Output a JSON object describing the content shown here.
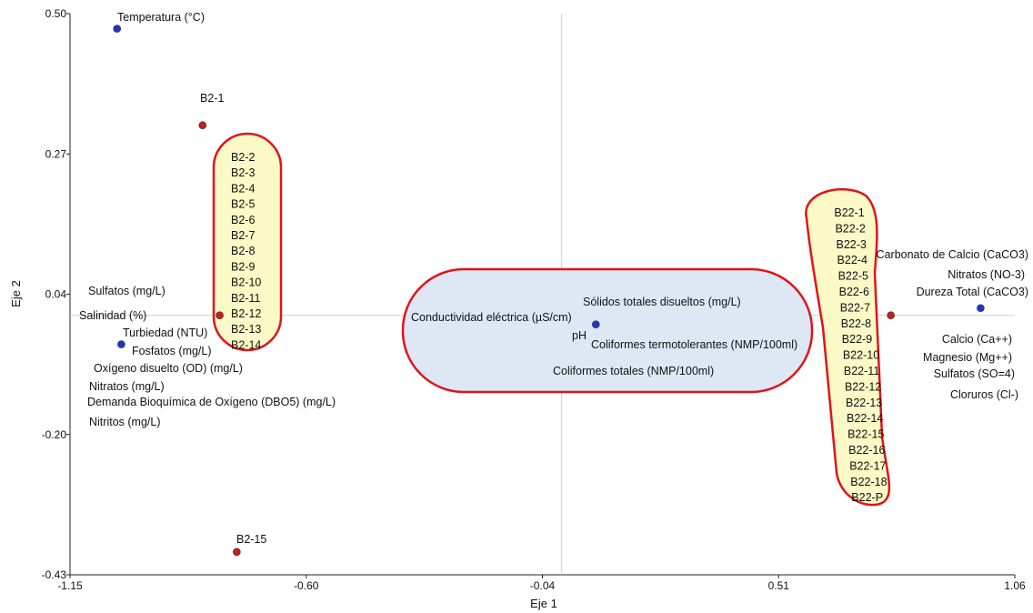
{
  "chart_data": {
    "type": "scatter",
    "xlabel": "Eje 1",
    "ylabel": "Eje 2",
    "xlim": [
      -1.15,
      1.06
    ],
    "ylim": [
      -0.43,
      0.5
    ],
    "xticks": [
      "-1.15",
      "-0.60",
      "-0.04",
      "0.51",
      "1.06"
    ],
    "yticks": [
      "0.50",
      "0.27",
      "0.04",
      "-0.20",
      "-0.43"
    ],
    "reference_lines": {
      "x": 0.0,
      "y": 0.0
    },
    "grid": false,
    "points": [
      {
        "label": "Temperatura (°C)",
        "x": -1.04,
        "y": 0.475,
        "color": "#1f35c9"
      },
      {
        "label": "B2-1",
        "x": -0.84,
        "y": 0.315,
        "color": "#c81e1e"
      },
      {
        "label": "",
        "x": -0.8,
        "y": 0.0,
        "color": "#c81e1e"
      },
      {
        "label": "",
        "x": -1.03,
        "y": -0.048,
        "color": "#1f35c9"
      },
      {
        "label": "B2-15",
        "x": -0.76,
        "y": -0.392,
        "color": "#c81e1e"
      },
      {
        "label": "",
        "x": 0.08,
        "y": -0.015,
        "color": "#1f35c9"
      },
      {
        "label": "",
        "x": 0.77,
        "y": 0.0,
        "color": "#c81e1e"
      },
      {
        "label": "",
        "x": 0.98,
        "y": 0.012,
        "color": "#1f35c9"
      }
    ],
    "variable_labels": [
      "Sulfatos (mg/L)",
      "Salinidad (%)",
      "Turbiedad (NTU)",
      "Fosfatos (mg/L)",
      "Oxígeno disuelto (OD) (mg/L)",
      "Nitratos (mg/L)",
      "Demanda Bioquímica de Oxígeno (DBO5) (mg/L)",
      "Nitritos (mg/L)",
      "Conductividad eléctrica (µS/cm)",
      "Sólidos totales disueltos (mg/L)",
      "pH",
      "Coliformes termotolerantes (NMP/100ml)",
      "Coliformes totales (NMP/100ml)",
      "Carbonato de Calcio (CaCO3)",
      "Nitratos (NO-3)",
      "Dureza Total (CaCO3)",
      "Calcio (Ca++)",
      "Magnesio (Mg++)",
      "Sulfatos (SO=4)",
      "Cloruros (Cl-)"
    ],
    "group_b2": [
      "B2-2",
      "B2-3",
      "B2-4",
      "B2-5",
      "B2-6",
      "B2-7",
      "B2-8",
      "B2-9",
      "B2-10",
      "B2-11",
      "B2-12",
      "B2-13",
      "B2-14"
    ],
    "group_b22": [
      "B22-1",
      "B22-2",
      "B22-3",
      "B22-4",
      "B22-5",
      "B22-6",
      "B22-7",
      "B22-8",
      "B22-9",
      "B22-10",
      "B22-11",
      "B22-12",
      "B22-13",
      "B22-14",
      "B22-15",
      "B22-16",
      "B22-17",
      "B22-18",
      "B22-P"
    ]
  }
}
